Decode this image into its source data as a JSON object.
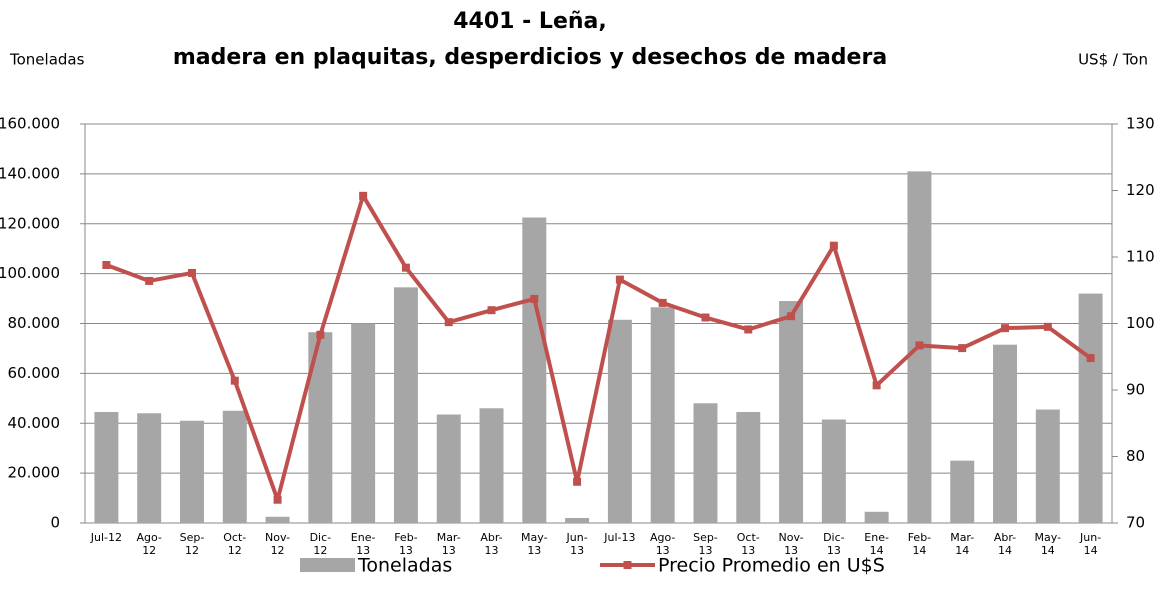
{
  "chart_data": {
    "type": "bar_line",
    "title": "4401 - Leña, madera en plaquitas, desperdicios y desechos de madera",
    "y_label": "Toneladas",
    "y2_label": "US$ / Ton",
    "categories": [
      "Jul-12",
      "Ago-12",
      "Sep-12",
      "Oct-12",
      "Nov-12",
      "Dic-12",
      "Ene-13",
      "Feb-13",
      "Mar-13",
      "Abr-13",
      "May-13",
      "Jun-13",
      "Jul-13",
      "Ago-13",
      "Sep-13",
      "Oct-13",
      "Nov-13",
      "Dic-13",
      "Ene-14",
      "Feb-14",
      "Mar-14",
      "Abr-14",
      "May-14",
      "Jun-14"
    ],
    "series": [
      {
        "name": "Toneladas",
        "type": "bar",
        "color": "#a6a6a6",
        "values": [
          44500,
          44000,
          41000,
          45000,
          2500,
          76500,
          80000,
          94500,
          43500,
          46000,
          122500,
          2000,
          81500,
          86500,
          48000,
          44500,
          89000,
          41500,
          4500,
          141000,
          25000,
          71500,
          45500,
          92000
        ]
      },
      {
        "name": "Precio Promedio en  U$S",
        "type": "line",
        "axis": "y2",
        "color": "#c0504d",
        "values": [
          108.8,
          106.4,
          107.6,
          91.4,
          73.5,
          98.3,
          119.2,
          108.4,
          100.2,
          102.0,
          103.7,
          76.2,
          106.6,
          103.1,
          100.9,
          99.1,
          101.1,
          111.7,
          90.7,
          96.7,
          96.3,
          99.3,
          99.5,
          94.8
        ]
      }
    ],
    "ylim": [
      0,
      160000
    ],
    "yticks": [
      0,
      {
        "value": 20000,
        "label": "20.000"
      },
      {
        "value": 40000,
        "label": "40.000"
      },
      {
        "value": 60000,
        "label": "60.000"
      },
      {
        "value": 80000,
        "label": "80.000"
      },
      {
        "value": 100000,
        "label": "100.000"
      },
      {
        "value": 120000,
        "label": "120.000"
      },
      {
        "value": 140000,
        "label": "140.000"
      },
      {
        "value": 160000,
        "label": "160.000"
      }
    ],
    "y2lim": [
      70,
      130
    ],
    "y2ticks": [
      70,
      80,
      90,
      100,
      110,
      120,
      130
    ],
    "grid": true
  }
}
